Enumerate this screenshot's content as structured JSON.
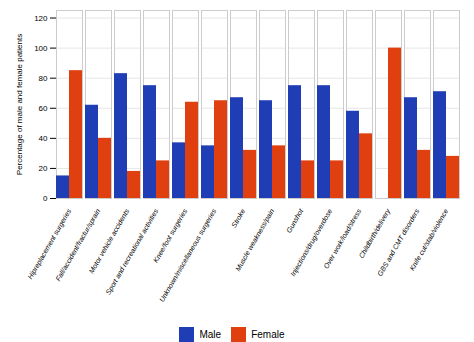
{
  "chart_data": {
    "type": "bar",
    "categories": [
      "Hipreplacement surgeries",
      "Fall/accident/fractur/sprain",
      "Motor vehicle accidents",
      "Sport and recreational activities",
      "Knee/foot surgeries",
      "Unknown/miscellaneous surgeries",
      "Stroke",
      "Muscle weakness/pain",
      "Gunshot",
      "Injections/drug/overdose",
      "Over work/load/stress",
      "Childbirth/delivery",
      "GBS and CMT disorders",
      "Knife cut/stab/violence"
    ],
    "series": [
      {
        "name": "Male",
        "color": "#1f3eb5",
        "values": [
          15,
          62,
          83,
          75,
          37,
          35,
          67,
          65,
          75,
          75,
          58,
          0,
          67,
          71
        ]
      },
      {
        "name": "Female",
        "color": "#e04010",
        "values": [
          85,
          40,
          18,
          25,
          64,
          65,
          32,
          35,
          25,
          25,
          43,
          100,
          32,
          28
        ]
      }
    ],
    "ylabel": "Percentage of male and female patients",
    "ylim": [
      0,
      125
    ],
    "yticks": [
      0,
      20,
      40,
      60,
      80,
      100,
      120
    ],
    "grid": true,
    "legend": "bottom"
  }
}
